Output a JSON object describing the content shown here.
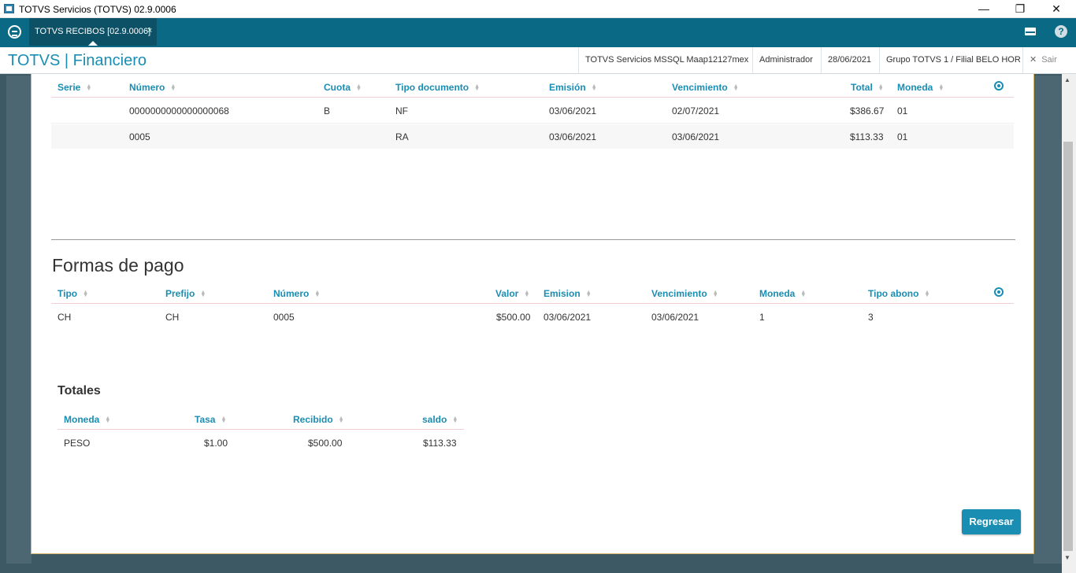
{
  "window": {
    "title": "TOTVS Servicios (TOTVS) 02.9.0006",
    "minimize": "—",
    "maximize": "❐",
    "close": "✕"
  },
  "tab": {
    "label": "TOTVS RECIBOS [02.9.0006]",
    "close": "×"
  },
  "topbar": {
    "help": "?"
  },
  "header": {
    "app_name": "TOTVS | Financiero",
    "env": "TOTVS Servicios MSSQL Maap12127mex",
    "user": "Administrador",
    "date": "28/06/2021",
    "branch": "Grupo TOTVS 1 / Filial BELO HOR",
    "exit_icon": "✕",
    "exit_label": "Sair"
  },
  "documents": {
    "columns": [
      "Serie",
      "Número",
      "Cuota",
      "Tipo documento",
      "Emisión",
      "Vencimiento",
      "Total",
      "Moneda"
    ],
    "rows": [
      {
        "serie": "",
        "numero": "0000000000000000068",
        "cuota": "B",
        "tipo": "NF",
        "emision": "03/06/2021",
        "vencimiento": "02/07/2021",
        "total": "$386.67",
        "moneda": "01"
      },
      {
        "serie": "",
        "numero": "0005",
        "cuota": "",
        "tipo": "RA",
        "emision": "03/06/2021",
        "vencimiento": "03/06/2021",
        "total": "$113.33",
        "moneda": "01"
      }
    ]
  },
  "payments": {
    "title": "Formas de pago",
    "columns": [
      "Tipo",
      "Prefijo",
      "Número",
      "Valor",
      "Emision",
      "Vencimiento",
      "Moneda",
      "Tipo abono"
    ],
    "rows": [
      {
        "tipo": "CH",
        "prefijo": "CH",
        "numero": "0005",
        "valor": "$500.00",
        "emision": "03/06/2021",
        "vencimiento": "03/06/2021",
        "moneda": "1",
        "tipo_abono": "3"
      }
    ]
  },
  "totals": {
    "title": "Totales",
    "columns": [
      "Moneda",
      "Tasa",
      "Recibido",
      "saldo"
    ],
    "rows": [
      {
        "moneda": "PESO",
        "tasa": "$1.00",
        "recibido": "$500.00",
        "saldo": "$113.33"
      }
    ]
  },
  "actions": {
    "back": "Regresar"
  },
  "colors": {
    "accent": "#1a8db3",
    "topbar": "#0a6a85",
    "backdrop": "#3d5964"
  },
  "icons": [
    "app-icon",
    "totvs-logo-icon",
    "mail-icon",
    "help-icon",
    "settings-gear-icon",
    "sort-icon"
  ]
}
